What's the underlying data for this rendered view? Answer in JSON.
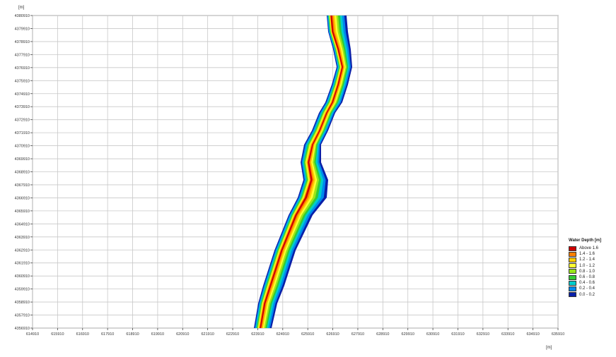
{
  "map": {
    "y_unit_label": "[m]",
    "x_unit_label": "[m]",
    "y_tick_labels": [
      "4380910",
      "4379910",
      "4378910",
      "4377910",
      "4376910",
      "4375910",
      "4374910",
      "4373910",
      "4372910",
      "4371910",
      "4370910",
      "4369910",
      "4368910",
      "4367910",
      "4366910",
      "4365910",
      "4364910",
      "4363910",
      "4362910",
      "4361910",
      "4360910",
      "4359910",
      "4358910",
      "4357910",
      "4356910"
    ],
    "x_tick_labels": [
      "614910",
      "615910",
      "616910",
      "617910",
      "618910",
      "619910",
      "620910",
      "621910",
      "622910",
      "623910",
      "624910",
      "625910",
      "626910",
      "627910",
      "628910",
      "629910",
      "630910",
      "631910",
      "632910",
      "633910",
      "634910",
      "635910"
    ],
    "grid": true
  },
  "legend": {
    "title": "Water Depth [m]",
    "items": [
      {
        "label": "Above 1.6",
        "color": "#cc0000"
      },
      {
        "label": "1.4 - 1.6",
        "color": "#ff7f00"
      },
      {
        "label": "1.2 - 1.4",
        "color": "#ffcc00"
      },
      {
        "label": "1.0 - 1.2",
        "color": "#ffff33"
      },
      {
        "label": "0.8 - 1.0",
        "color": "#99e619"
      },
      {
        "label": "0.6 - 0.8",
        "color": "#33cc33"
      },
      {
        "label": "0.4 - 0.6",
        "color": "#00cccc"
      },
      {
        "label": "0.2 - 0.4",
        "color": "#0088ee"
      },
      {
        "label": "0.0 - 0.2",
        "color": "#0a1fa8"
      }
    ]
  }
}
